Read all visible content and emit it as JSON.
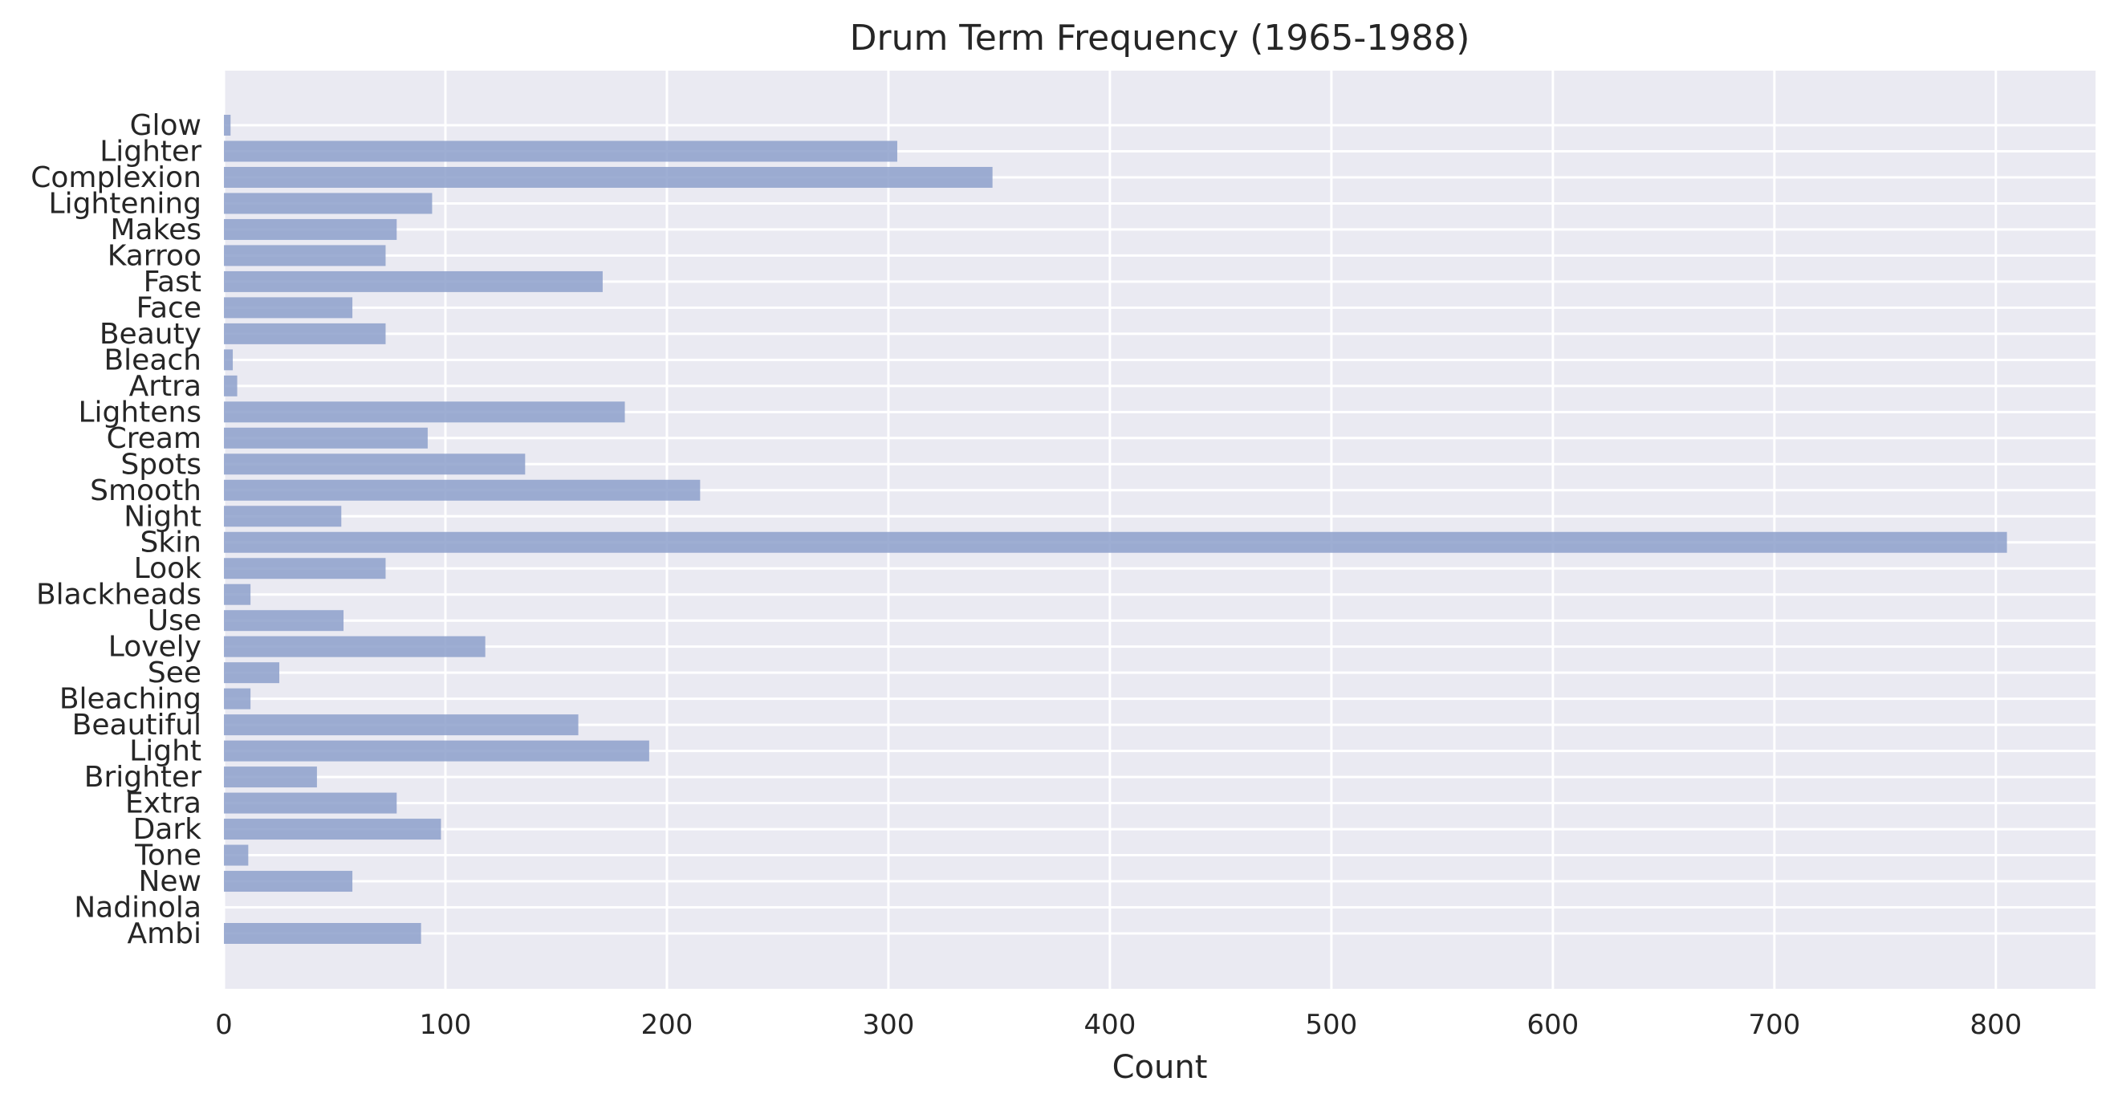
{
  "chart_data": {
    "type": "bar",
    "orientation": "horizontal",
    "title": "Drum Term Frequency (1965-1988)",
    "xlabel": "Count",
    "ylabel": "",
    "xlim": [
      0,
      845
    ],
    "xticks": [
      0,
      100,
      200,
      300,
      400,
      500,
      600,
      700,
      800
    ],
    "grid": true,
    "legend": "none",
    "colors": {
      "bar": "#8da0cb",
      "background": "#eaeaf2",
      "grid": "#ffffff",
      "text": "#262626"
    },
    "categories": [
      "Glow",
      "Lighter",
      "Complexion",
      "Lightening",
      "Makes",
      "Karroo",
      "Fast",
      "Face",
      "Beauty",
      "Bleach",
      "Artra",
      "Lightens",
      "Cream",
      "Spots",
      "Smooth",
      "Night",
      "Skin",
      "Look",
      "Blackheads",
      "Use",
      "Lovely",
      "See",
      "Bleaching",
      "Beautiful",
      "Light",
      "Brighter",
      "Extra",
      "Dark",
      "Tone",
      "New",
      "Nadinola",
      "Ambi"
    ],
    "values": [
      3,
      304,
      347,
      94,
      78,
      73,
      171,
      58,
      73,
      4,
      6,
      181,
      92,
      136,
      215,
      53,
      805,
      73,
      12,
      54,
      118,
      25,
      12,
      160,
      192,
      42,
      78,
      98,
      11,
      58,
      0,
      89
    ]
  }
}
